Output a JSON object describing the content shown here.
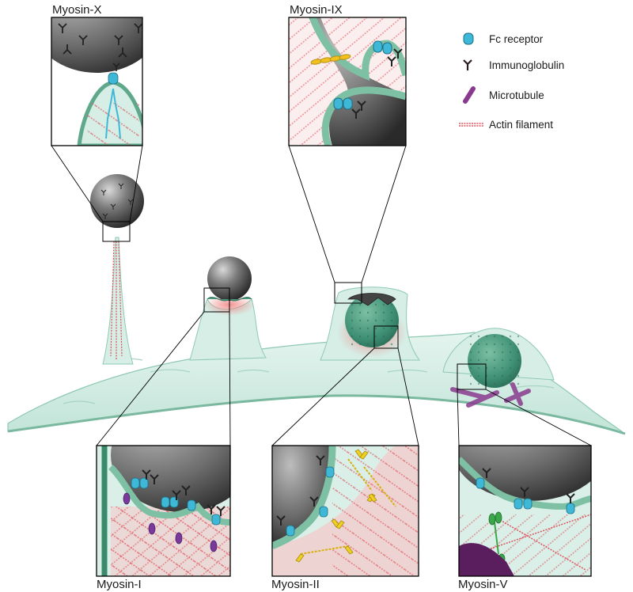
{
  "panels": {
    "myosin_x": "Myosin-X",
    "myosin_ix": "Myosin-IX",
    "myosin_i": "Myosin-I",
    "myosin_ii": "Myosin-II",
    "myosin_v": "Myosin-V"
  },
  "legend": [
    {
      "label": "Fc receptor",
      "icon": "fc-receptor-icon"
    },
    {
      "label": "Immunoglobulin",
      "icon": "immunoglobulin-icon"
    },
    {
      "label": "Microtubule",
      "icon": "microtubule-icon"
    },
    {
      "label": "Actin filament",
      "icon": "actin-filament-icon"
    }
  ],
  "colors": {
    "membrane": "#8fc9b2",
    "cytoplasm": "#d9efe8",
    "fc_receptor": "#3fb8d8",
    "immunoglobulin": "#2a1d1d",
    "microtubule": "#8a3a8e",
    "actin": "#e0505a",
    "particle": "#5a5a5a",
    "myosin_ii": "#f0d020",
    "myosin_v": "#3aa84a"
  }
}
